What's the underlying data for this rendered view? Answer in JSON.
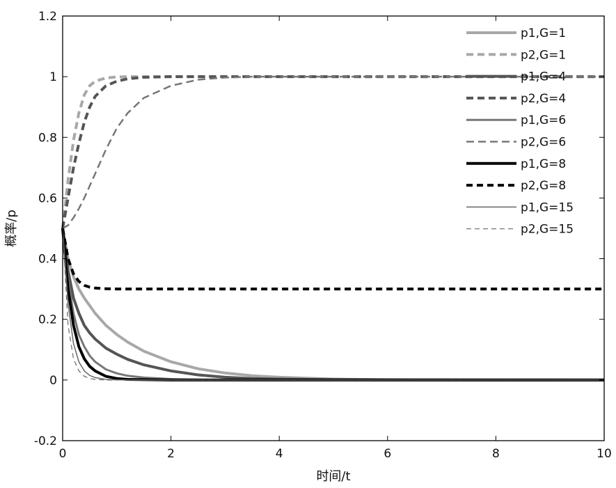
{
  "chart_data": {
    "type": "line",
    "xlabel": "时间/t",
    "ylabel": "概率/p",
    "xlim": [
      0,
      10
    ],
    "ylim": [
      -0.2,
      1.2
    ],
    "xticks": [
      "0",
      "2",
      "4",
      "6",
      "8",
      "10"
    ],
    "yticks": [
      "-0.2",
      "0",
      "0.2",
      "0.4",
      "0.6",
      "0.8",
      "1",
      "1.2"
    ],
    "legend_position": "top-right",
    "grid": false,
    "x": [
      0,
      0.1,
      0.2,
      0.3,
      0.4,
      0.5,
      0.6,
      0.8,
      1.0,
      1.2,
      1.5,
      2,
      2.5,
      3,
      3.5,
      4,
      5,
      6,
      7,
      8,
      9,
      10
    ],
    "series": [
      {
        "name": "p1,G=1",
        "color": "#a8a8a8",
        "width": 4,
        "dash": "",
        "values": [
          0.5,
          0.4,
          0.34,
          0.3,
          0.27,
          0.245,
          0.22,
          0.18,
          0.15,
          0.125,
          0.095,
          0.06,
          0.037,
          0.023,
          0.014,
          0.009,
          0.003,
          0.001,
          0.0005,
          0.0002,
          0.0001,
          0
        ]
      },
      {
        "name": "p2,G=1",
        "color": "#a8a8a8",
        "width": 4,
        "dash": "10,6",
        "values": [
          0.5,
          0.66,
          0.79,
          0.88,
          0.94,
          0.97,
          0.985,
          0.996,
          0.999,
          1,
          1,
          1,
          1,
          1,
          1,
          1,
          1,
          1,
          1,
          1,
          1,
          1
        ]
      },
      {
        "name": "p1,G=4",
        "color": "#555555",
        "width": 4,
        "dash": "",
        "values": [
          0.5,
          0.36,
          0.27,
          0.22,
          0.18,
          0.155,
          0.135,
          0.105,
          0.085,
          0.068,
          0.05,
          0.03,
          0.017,
          0.009,
          0.005,
          0.003,
          0.001,
          0.0003,
          0.0001,
          0,
          0,
          0
        ]
      },
      {
        "name": "p2,G=4",
        "color": "#555555",
        "width": 4,
        "dash": "10,6",
        "values": [
          0.5,
          0.6,
          0.7,
          0.78,
          0.85,
          0.9,
          0.935,
          0.97,
          0.985,
          0.993,
          0.998,
          1,
          1,
          1,
          1,
          1,
          1,
          1,
          1,
          1,
          1,
          1
        ]
      },
      {
        "name": "p1,G=6",
        "color": "#777777",
        "width": 3,
        "dash": "",
        "values": [
          0.5,
          0.33,
          0.22,
          0.15,
          0.11,
          0.08,
          0.06,
          0.035,
          0.022,
          0.014,
          0.008,
          0.003,
          0.001,
          0,
          0,
          0,
          0,
          0,
          0,
          0,
          0,
          0
        ]
      },
      {
        "name": "p2,G=6",
        "color": "#777777",
        "width": 2.5,
        "dash": "11,6",
        "values": [
          0.5,
          0.51,
          0.535,
          0.565,
          0.6,
          0.64,
          0.68,
          0.76,
          0.83,
          0.88,
          0.93,
          0.97,
          0.99,
          0.997,
          1,
          1,
          1,
          1,
          1,
          1,
          1,
          1
        ]
      },
      {
        "name": "p1,G=8",
        "color": "#000000",
        "width": 4,
        "dash": "",
        "values": [
          0.5,
          0.3,
          0.18,
          0.11,
          0.07,
          0.045,
          0.03,
          0.012,
          0.005,
          0.002,
          0.001,
          0,
          0,
          0,
          0,
          0,
          0,
          0,
          0,
          0,
          0,
          0
        ]
      },
      {
        "name": "p2,G=8",
        "color": "#000000",
        "width": 4,
        "dash": "9,6",
        "values": [
          0.5,
          0.4,
          0.35,
          0.325,
          0.312,
          0.306,
          0.303,
          0.301,
          0.3,
          0.3,
          0.3,
          0.3,
          0.3,
          0.3,
          0.3,
          0.3,
          0.3,
          0.3,
          0.3,
          0.3,
          0.3,
          0.3
        ]
      },
      {
        "name": "p1,G=15",
        "color": "#666666",
        "width": 1.5,
        "dash": "",
        "values": [
          0.5,
          0.25,
          0.12,
          0.06,
          0.03,
          0.015,
          0.008,
          0.002,
          0.0005,
          0,
          0,
          0,
          0,
          0,
          0,
          0,
          0,
          0,
          0,
          0,
          0,
          0
        ]
      },
      {
        "name": "p2,G=15",
        "color": "#666666",
        "width": 1.2,
        "dash": "7,5",
        "values": [
          0.5,
          0.18,
          0.07,
          0.03,
          0.012,
          0.005,
          0.002,
          0,
          0,
          0,
          0,
          0,
          0,
          0,
          0,
          0,
          0,
          0,
          0,
          0,
          0,
          0
        ]
      }
    ]
  }
}
